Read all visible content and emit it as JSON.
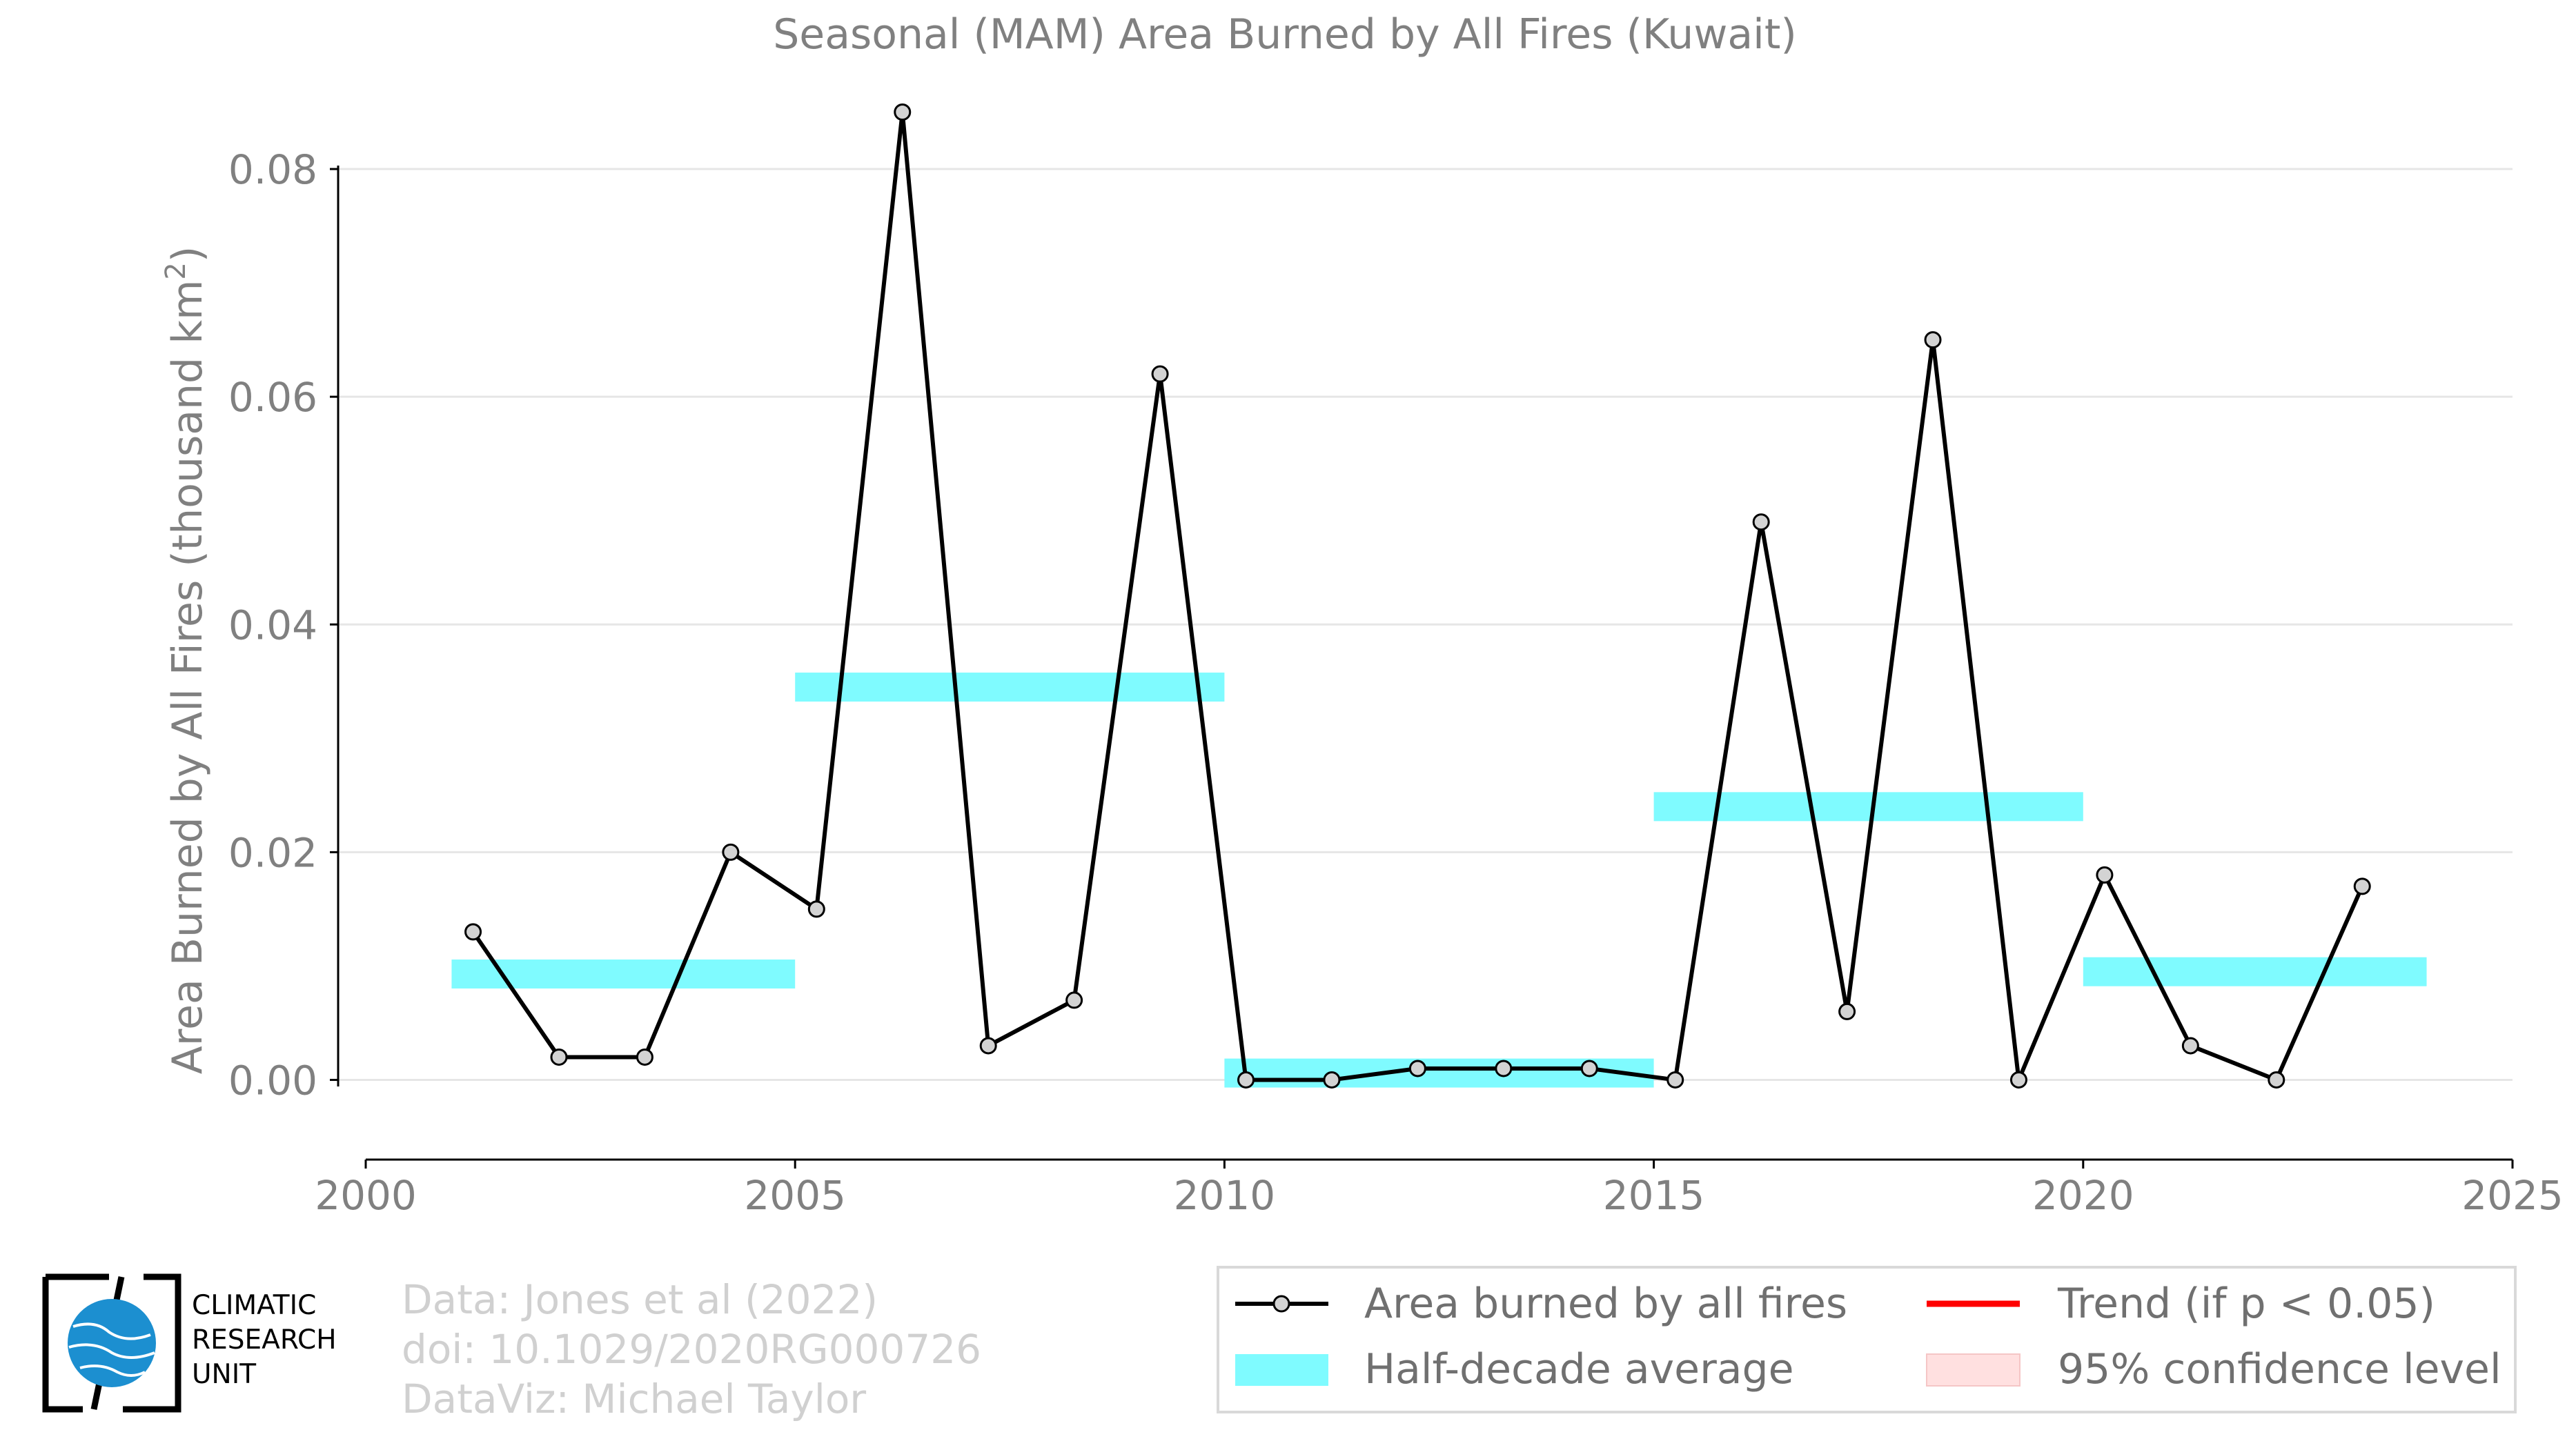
{
  "chart_data": {
    "type": "line",
    "title": "Seasonal (MAM) Area Burned by All Fires (Kuwait)",
    "xlabel": "",
    "ylabel": "Area Burned by All Fires (thousand km",
    "ylabel_sup": "2",
    "ylabel_end": ")",
    "xlim": [
      2000,
      2025
    ],
    "ylim": [
      -0.007,
      0.088
    ],
    "xticks": [
      2000,
      2005,
      2010,
      2015,
      2020,
      2025
    ],
    "xtick_labels": [
      "2000",
      "2005",
      "2010",
      "2015",
      "2020",
      "2025"
    ],
    "yticks": [
      0.0,
      0.02,
      0.04,
      0.06,
      0.08
    ],
    "ytick_labels": [
      "0.00",
      "0.02",
      "0.04",
      "0.06",
      "0.08"
    ],
    "grid": "horizontal",
    "series": [
      {
        "name": "Area burned by all fires",
        "color": "#000000",
        "marker_fill": "#d3d3d3",
        "x": [
          2001.25,
          2002.25,
          2003.25,
          2004.25,
          2005.25,
          2006.25,
          2007.25,
          2008.25,
          2009.25,
          2010.25,
          2011.25,
          2012.25,
          2013.25,
          2014.25,
          2015.25,
          2016.25,
          2017.25,
          2018.25,
          2019.25,
          2020.25,
          2021.25,
          2022.25,
          2023.25
        ],
        "values": [
          0.013,
          0.002,
          0.002,
          0.02,
          0.015,
          0.085,
          0.003,
          0.007,
          0.062,
          0.0,
          0.0,
          0.001,
          0.001,
          0.001,
          0.0,
          0.049,
          0.006,
          0.065,
          0.0,
          0.018,
          0.003,
          0.0,
          0.017
        ]
      }
    ],
    "half_decade_averages": {
      "name": "Half-decade average",
      "color": "#7ffbff",
      "segments": [
        {
          "x_start": 2001,
          "x_end": 2005,
          "value": 0.0093
        },
        {
          "x_start": 2005,
          "x_end": 2010,
          "value": 0.0345
        },
        {
          "x_start": 2010,
          "x_end": 2015,
          "value": 0.0006
        },
        {
          "x_start": 2015,
          "x_end": 2020,
          "value": 0.024
        },
        {
          "x_start": 2020,
          "x_end": 2024,
          "value": 0.0095
        }
      ]
    },
    "legend": {
      "placement": "bottom-right",
      "entries": [
        {
          "label": "Area burned by all fires",
          "kind": "line-marker",
          "color": "#000000"
        },
        {
          "label": "Trend (if p < 0.05)",
          "kind": "line",
          "color": "#ff0000"
        },
        {
          "label": "Half-decade average",
          "kind": "band",
          "color": "#7ffbff"
        },
        {
          "label": "95% confidence level",
          "kind": "band",
          "color": "#ffe0e0"
        }
      ]
    }
  },
  "credits": {
    "line1": "Data: Jones et al (2022)",
    "line2": "doi: 10.1029/2020RG000726",
    "line3": "DataViz: Michael Taylor"
  },
  "logo": {
    "line1": "CLIMATIC",
    "line2": "RESEARCH",
    "line3": "UNIT",
    "icon": "globe-icon",
    "color": "#1c8fd0"
  }
}
